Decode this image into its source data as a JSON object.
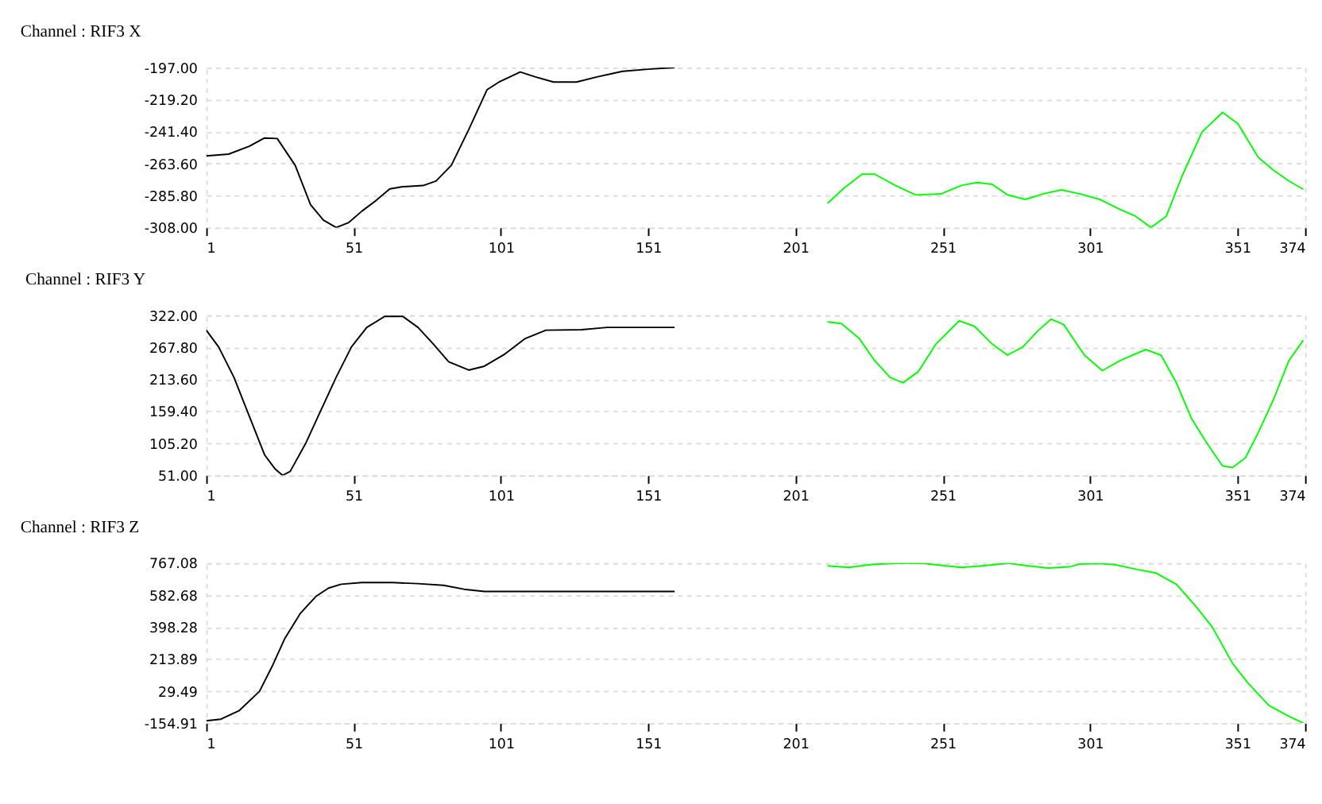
{
  "chart_data": [
    {
      "type": "line",
      "title": "Channel : RIF3 X",
      "xlim": [
        1,
        374
      ],
      "xticks": [
        1,
        51,
        101,
        151,
        201,
        251,
        301,
        351,
        374
      ],
      "ylim": [
        -308,
        -197
      ],
      "grid": "y",
      "yticks": [
        {
          "value": -197,
          "label": "-197.00"
        },
        {
          "value": -219.2,
          "label": "-219.20"
        },
        {
          "value": -241.4,
          "label": "-241.40"
        },
        {
          "value": -263.6,
          "label": "-263.60"
        },
        {
          "value": -285.8,
          "label": "-285.80"
        },
        {
          "value": -308,
          "label": "-308.00"
        }
      ],
      "series": [
        {
          "color": "#000000",
          "x": [
            1,
            8.6,
            15.6,
            20.8,
            25.1,
            31.2,
            36.4,
            40.8,
            45.1,
            49.4,
            53.8,
            58.1,
            63.3,
            67.7,
            74.6,
            79,
            84.2,
            90.2,
            96.3,
            100.7,
            107.6,
            112.8,
            118.9,
            126.7,
            133.6,
            142.3,
            151,
            160
          ],
          "values": [
            -258.3,
            -257.1,
            -251.7,
            -245.9,
            -246.3,
            -264.9,
            -292.1,
            -302.9,
            -308,
            -304.5,
            -296.7,
            -290.1,
            -281.2,
            -279.7,
            -278.9,
            -275.8,
            -264.9,
            -239.7,
            -212.5,
            -206.7,
            -200.1,
            -203.6,
            -207.1,
            -207.1,
            -203.6,
            -199.7,
            -198.2,
            -197
          ]
        },
        {
          "color": "#00ff00",
          "x": [
            211.9,
            217.5,
            223.6,
            227.9,
            234.9,
            241.8,
            250.5,
            257.4,
            262.6,
            267.8,
            273,
            279.1,
            285.2,
            291.3,
            297.4,
            304.3,
            311.2,
            316.5,
            321.7,
            326.9,
            332.1,
            339,
            346,
            351.2,
            358.1,
            363.3,
            368.5,
            373.4
          ],
          "values": [
            -291.3,
            -280.7,
            -271,
            -271,
            -278.8,
            -285.4,
            -284.6,
            -278.8,
            -276.8,
            -278,
            -285.4,
            -288.5,
            -284.6,
            -281.9,
            -284.6,
            -288.5,
            -295.5,
            -300.2,
            -308,
            -300.2,
            -273,
            -241.8,
            -228.2,
            -236,
            -259.3,
            -268.3,
            -275.7,
            -281.5
          ]
        }
      ]
    },
    {
      "type": "line",
      "title": "Channel : RIF3 Y",
      "xlim": [
        1,
        374
      ],
      "xticks": [
        1,
        51,
        101,
        151,
        201,
        251,
        301,
        351,
        374
      ],
      "ylim": [
        51,
        322
      ],
      "grid": "y",
      "yticks": [
        {
          "value": 322,
          "label": "322.00"
        },
        {
          "value": 267.8,
          "label": "267.80"
        },
        {
          "value": 213.6,
          "label": "213.60"
        },
        {
          "value": 159.4,
          "label": "159.40"
        },
        {
          "value": 105.2,
          "label": "105.20"
        },
        {
          "value": 51,
          "label": "51.00"
        }
      ],
      "series": [
        {
          "color": "#000000",
          "x": [
            1,
            5.2,
            10.4,
            15.6,
            20.8,
            24.3,
            26.9,
            29.5,
            34.7,
            39.9,
            45.1,
            50.3,
            55.5,
            61.6,
            67.7,
            72.9,
            78.1,
            83.3,
            90.2,
            95.4,
            102.4,
            109.3,
            116.3,
            128.4,
            137.1,
            160
          ],
          "values": [
            296.7,
            268.5,
            217,
            151.3,
            85.7,
            62.2,
            51,
            57.6,
            104.4,
            160.7,
            217,
            268.5,
            301.4,
            320.1,
            320.1,
            301.4,
            273.2,
            243.2,
            229.2,
            235.7,
            256.4,
            282.6,
            296.7,
            297.6,
            301.4,
            301.4
          ]
        },
        {
          "color": "#00ff00",
          "x": [
            211.9,
            216.6,
            222.7,
            227.9,
            233.1,
            237.5,
            242.7,
            248.7,
            256.6,
            261.8,
            267.8,
            273,
            278.2,
            283.5,
            287.8,
            292.1,
            299.1,
            305.2,
            311.2,
            319.9,
            325.1,
            330.3,
            335.5,
            340.8,
            346,
            349.4,
            353.8,
            358.1,
            363.3,
            368.5,
            373.4
          ],
          "values": [
            310.7,
            307.9,
            282.6,
            245.1,
            217,
            207.6,
            226.4,
            273.2,
            312.6,
            303.2,
            273.2,
            254.5,
            268.5,
            296.7,
            315.4,
            306.1,
            254.5,
            228.2,
            245.1,
            263.9,
            254.5,
            207.6,
            146.6,
            104.4,
            66.9,
            64.1,
            81,
            123.2,
            179.5,
            245.1,
            279.8
          ]
        }
      ]
    },
    {
      "type": "line",
      "title": "Channel : RIF3 Z",
      "xlim": [
        1,
        374
      ],
      "xticks": [
        1,
        51,
        101,
        151,
        201,
        251,
        301,
        351,
        374
      ],
      "ylim": [
        -154.91,
        767.08
      ],
      "grid": "y",
      "yticks": [
        {
          "value": 767.08,
          "label": "767.08"
        },
        {
          "value": 582.68,
          "label": "582.68"
        },
        {
          "value": 398.28,
          "label": "398.28"
        },
        {
          "value": 213.89,
          "label": "213.89"
        },
        {
          "value": 29.49,
          "label": "29.49"
        },
        {
          "value": -154.91,
          "label": "-154.91"
        }
      ],
      "series": [
        {
          "color": "#000000",
          "x": [
            1,
            6,
            12.1,
            19.1,
            23.4,
            27.7,
            33,
            38.2,
            42.5,
            46.8,
            53.8,
            64.2,
            72.9,
            81.6,
            88.5,
            95.5,
            160
          ],
          "values": [
            -142,
            -132.4,
            -84.2,
            28.2,
            172.8,
            333.4,
            478,
            574.3,
            622.5,
            645,
            654.6,
            654.6,
            648.2,
            638.6,
            616.1,
            603.2,
            603.2
          ]
        },
        {
          "color": "#00ff00",
          "x": [
            211.9,
            219.2,
            226.2,
            234.9,
            243.5,
            252.2,
            257.4,
            264.4,
            273,
            280,
            286.9,
            293.8,
            297.4,
            304.3,
            309.5,
            316.5,
            323.4,
            330.3,
            337.3,
            342.5,
            349.4,
            354.6,
            361.6,
            368.5,
            373.4
          ],
          "values": [
            751,
            741.4,
            757.4,
            766,
            767,
            751,
            741.4,
            751,
            766,
            751,
            738.2,
            744.6,
            760.7,
            764,
            757.4,
            731.8,
            709.3,
            645,
            510.1,
            397.7,
            188.8,
            76.4,
            -52.1,
            -116.4,
            -154.9
          ]
        }
      ]
    }
  ]
}
